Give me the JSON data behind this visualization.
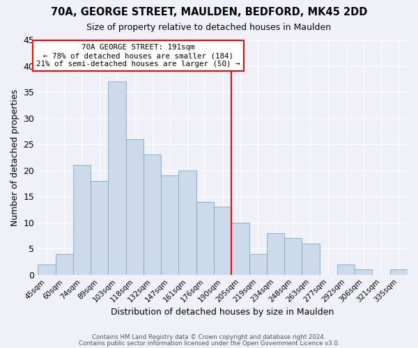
{
  "title": "70A, GEORGE STREET, MAULDEN, BEDFORD, MK45 2DD",
  "subtitle": "Size of property relative to detached houses in Maulden",
  "xlabel": "Distribution of detached houses by size in Maulden",
  "ylabel": "Number of detached properties",
  "footer1": "Contains HM Land Registry data © Crown copyright and database right 2024.",
  "footer2": "Contains public sector information licensed under the Open Government Licence v3.0.",
  "categories": [
    "45sqm",
    "60sqm",
    "74sqm",
    "89sqm",
    "103sqm",
    "118sqm",
    "132sqm",
    "147sqm",
    "161sqm",
    "176sqm",
    "190sqm",
    "205sqm",
    "219sqm",
    "234sqm",
    "248sqm",
    "263sqm",
    "277sqm",
    "292sqm",
    "306sqm",
    "321sqm",
    "335sqm"
  ],
  "values": [
    2,
    4,
    21,
    18,
    37,
    26,
    23,
    19,
    20,
    14,
    13,
    10,
    4,
    8,
    7,
    6,
    0,
    2,
    1,
    0,
    1
  ],
  "bar_color": "#ccd9ea",
  "bar_edge_color": "#7aaac8",
  "reference_line_after_index": 10,
  "reference_line_color": "red",
  "annotation_title": "70A GEORGE STREET: 191sqm",
  "annotation_line1": "← 78% of detached houses are smaller (184)",
  "annotation_line2": "21% of semi-detached houses are larger (50) →",
  "annotation_box_facecolor": "#ffffff",
  "annotation_box_edge": "red",
  "ylim": [
    0,
    45
  ],
  "yticks": [
    0,
    5,
    10,
    15,
    20,
    25,
    30,
    35,
    40,
    45
  ],
  "plot_bg_color": "#eef2f8",
  "fig_bg_color": "#eef2f8",
  "grid_color": "#ffffff"
}
